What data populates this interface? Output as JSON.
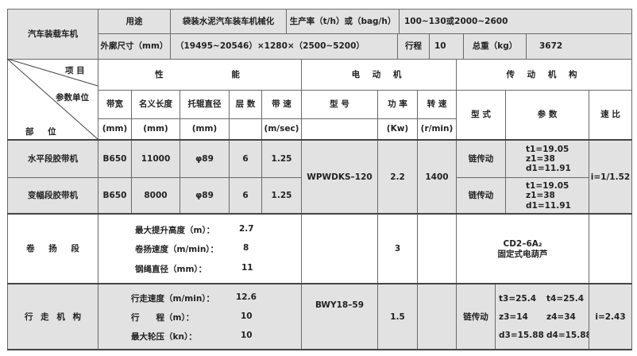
{
  "top": {
    "machine_name": "汽车装载车机",
    "usage_label": "用途",
    "usage_value": "袋装水泥汽车装车机械化",
    "capacity_label": "生产率（t/h）或（bag/h）",
    "capacity_value": "100~130或2000~2600",
    "dimensions_label": "外廓尺寸（mm）",
    "dimensions_value": "（19495~20546）×1280×（2500~5200）",
    "stroke_label": "行程",
    "stroke_value": "10",
    "weight_label": "总重（kg）",
    "weight_value": "3672"
  },
  "header": {
    "diag_item": "项 目",
    "diag_unit": "参数单位",
    "diag_part": "部 位",
    "performance": "性 能",
    "motor": "电 动 机",
    "transmission": "传 动 机 构",
    "cols": [
      "带宽",
      "名义长度",
      "托辊直径",
      "层 数",
      "带 速",
      "型 号",
      "功 率",
      "转 速",
      "型 式",
      "参 数",
      "速 比"
    ],
    "units": [
      "(mm)",
      "(mm)",
      "(mm)",
      "",
      "(m/sec)",
      "",
      "(Kw)",
      "(r/min)"
    ]
  },
  "rows": {
    "horizontal": {
      "name": "水平段胶带机",
      "width": "B650",
      "length": "11000",
      "roller": "φ89",
      "layers": "6",
      "speed": "1.25",
      "type": "链传动",
      "params": [
        "t1=19.05",
        "z1=38",
        "d1=11.91"
      ]
    },
    "luffing": {
      "name": "变幅段胶带机",
      "width": "B650",
      "length": "8000",
      "roller": "φ89",
      "layers": "6",
      "speed": "1.25",
      "type": "链传动",
      "params": [
        "t1=19.05",
        "z1=38",
        "d1=11.91"
      ]
    },
    "belt_motor": {
      "model": "WPWDKS–120",
      "power": "2.2",
      "rpm": "1400",
      "ratio": "i=1/1.52"
    },
    "hoist": {
      "name": "卷 扬 段",
      "specs": [
        {
          "label": "最大提升高度（m）：",
          "value": "2.7"
        },
        {
          "label": "卷扬速度（m/min）：",
          "value": "8"
        },
        {
          "label": "钢绳直径（mm）：",
          "value": "11"
        }
      ],
      "power": "3",
      "device": [
        "CD2–6A₂",
        "固定式电葫芦"
      ]
    },
    "travel": {
      "name": "行 走 机 构",
      "specs": [
        {
          "label": "行走速度（m/min）：",
          "value": "12.6"
        },
        {
          "label": "行　　程（m）：",
          "value": "10"
        },
        {
          "label": "最大轮压（kn）：",
          "value": "10"
        }
      ],
      "model": "BWY18–59",
      "power": "1.5",
      "type": "链传动",
      "params": [
        "t3=25.4",
        "t4=25.4",
        "z3=14",
        "z4=34",
        "d3=15.88",
        "d4=15.88"
      ],
      "ratio": "i=2.43"
    }
  }
}
